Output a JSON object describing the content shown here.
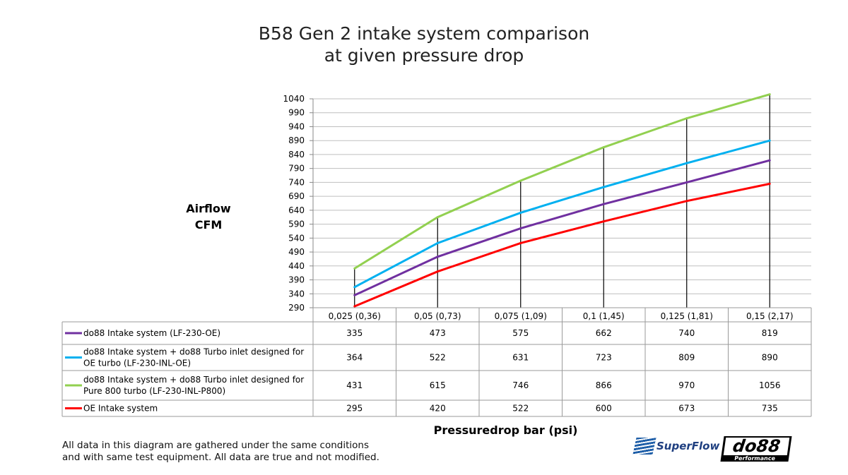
{
  "chart_data": {
    "type": "line",
    "title": "B58 Gen 2 intake system comparison\nat given pressure drop",
    "title_lines": [
      "B58 Gen 2 intake system comparison",
      "at given pressure drop"
    ],
    "ylabel_lines": [
      "Airflow",
      "CFM"
    ],
    "xlabel": "Pressuredrop bar (psi)",
    "categories": [
      "0,025 (0,36)",
      "0,05 (0,73)",
      "0,075 (1,09)",
      "0,1 (1,45)",
      "0,125 (1,81)",
      "0,15 (2,17)"
    ],
    "ylim": [
      290,
      1040
    ],
    "yticks": [
      290,
      340,
      390,
      440,
      490,
      540,
      590,
      640,
      690,
      740,
      790,
      840,
      890,
      940,
      990,
      1040
    ],
    "grid": true,
    "legend": "data-table-below",
    "series": [
      {
        "name": "do88 Intake system (LF-230-OE)",
        "name_lines": [
          "do88 Intake system (LF-230-OE)"
        ],
        "color": "#7030a0",
        "values": [
          335,
          473,
          575,
          662,
          740,
          819
        ]
      },
      {
        "name": "do88 Intake system + do88 Turbo inlet designed for OE turbo (LF-230-INL-OE)",
        "name_lines": [
          "do88 Intake system + do88 Turbo inlet designed for",
          "OE turbo (LF-230-INL-OE)"
        ],
        "color": "#00b0f0",
        "values": [
          364,
          522,
          631,
          723,
          809,
          890
        ]
      },
      {
        "name": "do88 Intake system + do88 Turbo inlet designed for Pure 800 turbo (LF-230-INL-P800)",
        "name_lines": [
          "do88 Intake system + do88 Turbo inlet designed for",
          "Pure 800 turbo (LF-230-INL-P800)"
        ],
        "color": "#92d050",
        "values": [
          431,
          615,
          746,
          866,
          970,
          1056
        ]
      },
      {
        "name": "OE Intake system",
        "name_lines": [
          "OE Intake system"
        ],
        "color": "#ff0000",
        "values": [
          295,
          420,
          522,
          600,
          673,
          735
        ]
      }
    ]
  },
  "footnote_lines": [
    "All data in this diagram are gathered under the same conditions",
    "and with same test equipment. All data are true and not modified."
  ],
  "logos": {
    "superflow": "SuperFlow",
    "do88": "do88",
    "do88_sub": "Performance"
  }
}
